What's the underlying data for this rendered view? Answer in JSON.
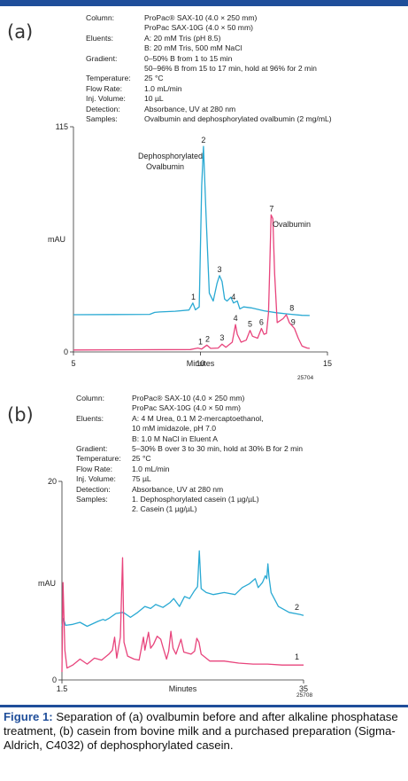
{
  "colors": {
    "accent": "#1f4e9a",
    "series_blue": "#29a9d3",
    "series_pink": "#e8447c"
  },
  "panel_a": {
    "label": "(a)",
    "conditions": [
      {
        "key": "Column:",
        "lines": [
          "ProPac® SAX-10 (4.0 × 250 mm)",
          "ProPac SAX-10G (4.0 × 50 mm)"
        ]
      },
      {
        "key": "Eluents:",
        "lines": [
          "A: 20 mM Tris (pH 8.5)",
          "B: 20 mM Tris, 500 mM NaCl"
        ]
      },
      {
        "key": "Gradient:",
        "lines": [
          "0–50% B from 1 to 15 min",
          "50–96% B from 15 to 17 min, hold at 96% for 2 min"
        ]
      },
      {
        "key": "Temperature:",
        "lines": [
          "25 °C"
        ]
      },
      {
        "key": "Flow Rate:",
        "lines": [
          "1.0 mL/min"
        ]
      },
      {
        "key": "Inj. Volume:",
        "lines": [
          "10 µL"
        ]
      },
      {
        "key": "Detection:",
        "lines": [
          "Absorbance, UV at 280 nm"
        ]
      },
      {
        "key": "Samples:",
        "lines": [
          "Ovalbumin and dephosphorylated ovalbumin (2 mg/mL)"
        ]
      }
    ],
    "annotations": {
      "deph_line1": "Dephosphorylated",
      "deph_line2": "Ovalbumin",
      "oval": "Ovalbumin"
    },
    "figure_id": "25704"
  },
  "panel_b": {
    "label": "(b)",
    "conditions": [
      {
        "key": "Column:",
        "lines": [
          "ProPac® SAX-10 (4.0 × 250 mm)",
          "ProPac SAX-10G (4.0 × 50 mm)"
        ]
      },
      {
        "key": "Eluents:",
        "lines": [
          "A: 4 M Urea, 0.1 M 2-mercaptoethanol,",
          "    10 mM imidazole, pH 7.0",
          "B: 1.0 M NaCl in Eluent A"
        ]
      },
      {
        "key": "Gradient:",
        "lines": [
          "5–30% B over 3 to 30 min, hold at 30% B for 2 min"
        ]
      },
      {
        "key": "Temperature:",
        "lines": [
          "25 °C"
        ]
      },
      {
        "key": "Flow Rate:",
        "lines": [
          "1.0 mL/min"
        ]
      },
      {
        "key": "Inj. Volume:",
        "lines": [
          "75 µL"
        ]
      },
      {
        "key": "Detection:",
        "lines": [
          "Absorbance, UV at 280 nm"
        ]
      },
      {
        "key": "Samples:",
        "lines": [
          "1. Dephosphorylated casein (1 µg/µL)",
          "2. Casein (1 µg/µL)"
        ]
      }
    ],
    "figure_id": "25708"
  },
  "caption": {
    "bold": "Figure 1:",
    "text": " Separation of (a) ovalbumin before and after alkaline phosphatase treatment, (b) casein from bovine milk and a purchased preparation (Sigma-Aldrich, C4032) of dephosphorylated casein."
  },
  "chart_data": [
    {
      "type": "line",
      "panel": "a",
      "xlabel": "Minutes",
      "ylabel": "mAU",
      "xlim": [
        5,
        15
      ],
      "ylim": [
        0,
        115
      ],
      "x_ticks": [
        5,
        10,
        15
      ],
      "y_ticks": [
        0,
        115
      ],
      "series": [
        {
          "color": "#29a9d3",
          "label": "",
          "points": [
            [
              5,
              19
            ],
            [
              8.0,
              19.2
            ],
            [
              8.2,
              20.2
            ],
            [
              8.4,
              20.4
            ],
            [
              9.0,
              20.8
            ],
            [
              9.55,
              21.4
            ],
            [
              9.7,
              25
            ],
            [
              9.8,
              21.5
            ],
            [
              9.95,
              23
            ],
            [
              10.05,
              85
            ],
            [
              10.12,
              105
            ],
            [
              10.22,
              70
            ],
            [
              10.35,
              30
            ],
            [
              10.5,
              26
            ],
            [
              10.65,
              35
            ],
            [
              10.75,
              39
            ],
            [
              10.85,
              36
            ],
            [
              10.95,
              27
            ],
            [
              11.05,
              26
            ],
            [
              11.2,
              28
            ],
            [
              11.3,
              25
            ],
            [
              11.45,
              26
            ],
            [
              11.55,
              22
            ],
            [
              11.7,
              23
            ],
            [
              12.0,
              22.5
            ],
            [
              12.5,
              21
            ],
            [
              13.0,
              20
            ],
            [
              13.5,
              19.3
            ],
            [
              14.0,
              18.7
            ],
            [
              14.3,
              18.6
            ]
          ],
          "peak_labels": [
            {
              "label": "1",
              "x": 9.72,
              "y": 25
            },
            {
              "label": "2",
              "x": 10.12,
              "y": 105
            },
            {
              "label": "3",
              "x": 10.75,
              "y": 39
            },
            {
              "label": "4",
              "x": 11.3,
              "y": 25
            },
            {
              "label": "8",
              "x": 13.6,
              "y": 19.3
            }
          ]
        },
        {
          "color": "#e8447c",
          "label": "",
          "points": [
            [
              5,
              1
            ],
            [
              9.6,
              1.2
            ],
            [
              9.9,
              2
            ],
            [
              10.05,
              1.5
            ],
            [
              10.25,
              3.5
            ],
            [
              10.4,
              1.8
            ],
            [
              10.7,
              2
            ],
            [
              10.85,
              4
            ],
            [
              11.0,
              2.4
            ],
            [
              11.25,
              5
            ],
            [
              11.38,
              14
            ],
            [
              11.45,
              9
            ],
            [
              11.6,
              5
            ],
            [
              11.8,
              6
            ],
            [
              11.95,
              11
            ],
            [
              12.05,
              8
            ],
            [
              12.25,
              7
            ],
            [
              12.4,
              12
            ],
            [
              12.5,
              9
            ],
            [
              12.6,
              9.5
            ],
            [
              12.68,
              20
            ],
            [
              12.72,
              40
            ],
            [
              12.78,
              70
            ],
            [
              12.85,
              68
            ],
            [
              12.92,
              40
            ],
            [
              13.02,
              15
            ],
            [
              13.25,
              17
            ],
            [
              13.38,
              19
            ],
            [
              13.5,
              15
            ],
            [
              13.7,
              12
            ],
            [
              13.85,
              7
            ],
            [
              14.0,
              3
            ],
            [
              14.2,
              2
            ],
            [
              14.3,
              1.8
            ]
          ],
          "peak_labels": [
            {
              "label": "1",
              "x": 10.0,
              "y": 2
            },
            {
              "label": "2",
              "x": 10.28,
              "y": 3.5
            },
            {
              "label": "3",
              "x": 10.85,
              "y": 4
            },
            {
              "label": "4",
              "x": 11.38,
              "y": 14
            },
            {
              "label": "5",
              "x": 11.95,
              "y": 11
            },
            {
              "label": "6",
              "x": 12.4,
              "y": 12
            },
            {
              "label": "7",
              "x": 12.8,
              "y": 70
            },
            {
              "label": "9",
              "x": 13.65,
              "y": 12
            }
          ]
        }
      ]
    },
    {
      "type": "line",
      "panel": "b",
      "xlabel": "Minutes",
      "ylabel": "mAU",
      "xlim": [
        1.5,
        35
      ],
      "ylim": [
        0,
        20
      ],
      "x_ticks": [
        1.5,
        35
      ],
      "y_ticks": [
        0,
        20
      ],
      "series": [
        {
          "color": "#29a9d3",
          "label": "2",
          "points": [
            [
              1.5,
              5.4
            ],
            [
              1.7,
              6.2
            ],
            [
              2.0,
              5.5
            ],
            [
              3.0,
              5.6
            ],
            [
              4.0,
              5.8
            ],
            [
              5.0,
              5.4
            ],
            [
              6.5,
              5.9
            ],
            [
              7.2,
              6.1
            ],
            [
              7.5,
              6.0
            ],
            [
              8.0,
              6.2
            ],
            [
              9.0,
              6.7
            ],
            [
              10.0,
              6.8
            ],
            [
              11.0,
              6.3
            ],
            [
              12.0,
              6.8
            ],
            [
              13.0,
              7.4
            ],
            [
              13.8,
              7.2
            ],
            [
              14.5,
              7.6
            ],
            [
              15.5,
              7.3
            ],
            [
              16.5,
              7.8
            ],
            [
              17.0,
              8.2
            ],
            [
              17.8,
              7.4
            ],
            [
              18.5,
              8.4
            ],
            [
              19.2,
              8.2
            ],
            [
              19.8,
              8.9
            ],
            [
              20.3,
              9.4
            ],
            [
              20.55,
              13.0
            ],
            [
              20.8,
              9.2
            ],
            [
              21.5,
              8.8
            ],
            [
              22.5,
              8.6
            ],
            [
              24.0,
              8.8
            ],
            [
              25.5,
              8.6
            ],
            [
              26.5,
              9.3
            ],
            [
              27.5,
              9.7
            ],
            [
              28.3,
              10.2
            ],
            [
              28.7,
              9.3
            ],
            [
              29.3,
              9.8
            ],
            [
              29.7,
              10.5
            ],
            [
              29.9,
              10.2
            ],
            [
              30.05,
              11.7
            ],
            [
              30.2,
              10.4
            ],
            [
              30.5,
              8.8
            ],
            [
              31.5,
              7.4
            ],
            [
              33.0,
              6.8
            ],
            [
              34.5,
              6.6
            ],
            [
              35,
              6.5
            ]
          ]
        },
        {
          "color": "#e8447c",
          "label": "1",
          "points": [
            [
              1.5,
              0.8
            ],
            [
              1.65,
              9.8
            ],
            [
              1.9,
              3.0
            ],
            [
              2.2,
              1.2
            ],
            [
              3.0,
              1.5
            ],
            [
              4.0,
              2.1
            ],
            [
              5.0,
              1.6
            ],
            [
              6.0,
              2.2
            ],
            [
              7.0,
              2.0
            ],
            [
              8.0,
              2.6
            ],
            [
              8.5,
              3.0
            ],
            [
              8.8,
              4.3
            ],
            [
              9.1,
              2.2
            ],
            [
              9.6,
              4.3
            ],
            [
              9.9,
              12.3
            ],
            [
              10.1,
              3.8
            ],
            [
              10.6,
              2.4
            ],
            [
              11.5,
              2.1
            ],
            [
              12.2,
              2.0
            ],
            [
              12.8,
              4.3
            ],
            [
              13.0,
              3.0
            ],
            [
              13.5,
              4.8
            ],
            [
              13.8,
              3.2
            ],
            [
              14.2,
              3.6
            ],
            [
              14.7,
              4.4
            ],
            [
              15.2,
              4.1
            ],
            [
              15.5,
              3.3
            ],
            [
              16.0,
              2.1
            ],
            [
              16.3,
              2.9
            ],
            [
              16.6,
              4.9
            ],
            [
              16.9,
              3.2
            ],
            [
              17.3,
              2.6
            ],
            [
              18.0,
              4.1
            ],
            [
              18.4,
              2.8
            ],
            [
              19.4,
              2.6
            ],
            [
              19.9,
              2.9
            ],
            [
              20.2,
              4.2
            ],
            [
              20.5,
              3.8
            ],
            [
              20.8,
              2.6
            ],
            [
              22.0,
              1.9
            ],
            [
              24.0,
              1.9
            ],
            [
              26.0,
              1.7
            ],
            [
              28.0,
              1.6
            ],
            [
              30.0,
              1.6
            ],
            [
              32.0,
              1.5
            ],
            [
              35,
              1.5
            ]
          ]
        }
      ]
    }
  ]
}
